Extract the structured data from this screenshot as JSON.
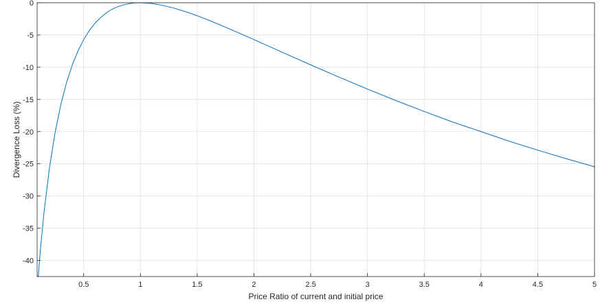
{
  "chart_data": {
    "type": "line",
    "title": "",
    "xlabel": "Price Ratio of current and initial price",
    "ylabel": "Divergence Loss (%)",
    "xlim": [
      0.09,
      5
    ],
    "ylim": [
      -42.5,
      0
    ],
    "x_ticks": [
      0.5,
      1,
      1.5,
      2,
      2.5,
      3,
      3.5,
      4,
      4.5,
      5
    ],
    "y_ticks": [
      0,
      -5,
      -10,
      -15,
      -20,
      -25,
      -30,
      -35,
      -40
    ],
    "grid": true,
    "line_color": "#0072BD",
    "series": [
      {
        "x": [
          0.09,
          0.1,
          0.12,
          0.15,
          0.2,
          0.25,
          0.3,
          0.35,
          0.4,
          0.45,
          0.5,
          0.55,
          0.6,
          0.65,
          0.7,
          0.75,
          0.8,
          0.85,
          0.9,
          0.95,
          1,
          1.1,
          1.2,
          1.3,
          1.4,
          1.5,
          1.6,
          1.8,
          2,
          2.25,
          2.5,
          2.75,
          3,
          3.25,
          3.5,
          3.75,
          4,
          4.25,
          4.5,
          4.75,
          5
        ],
        "values": [
          -42.47,
          -42.5,
          -38.14,
          -32.66,
          -25.46,
          -20,
          -15.73,
          -12.33,
          -9.64,
          -7.48,
          -5.72,
          -4.31,
          -3.18,
          -2.29,
          -1.57,
          -1,
          -0.62,
          -0.34,
          -0.14,
          -0.03,
          0,
          -0.11,
          -0.42,
          -0.86,
          -1.4,
          -2.02,
          -2.69,
          -4.17,
          -5.72,
          -7.69,
          -9.64,
          -11.55,
          -13.4,
          -15.18,
          -16.88,
          -18.51,
          -20,
          -21.5,
          -22.88,
          -24.21,
          -25.46
        ]
      }
    ]
  }
}
